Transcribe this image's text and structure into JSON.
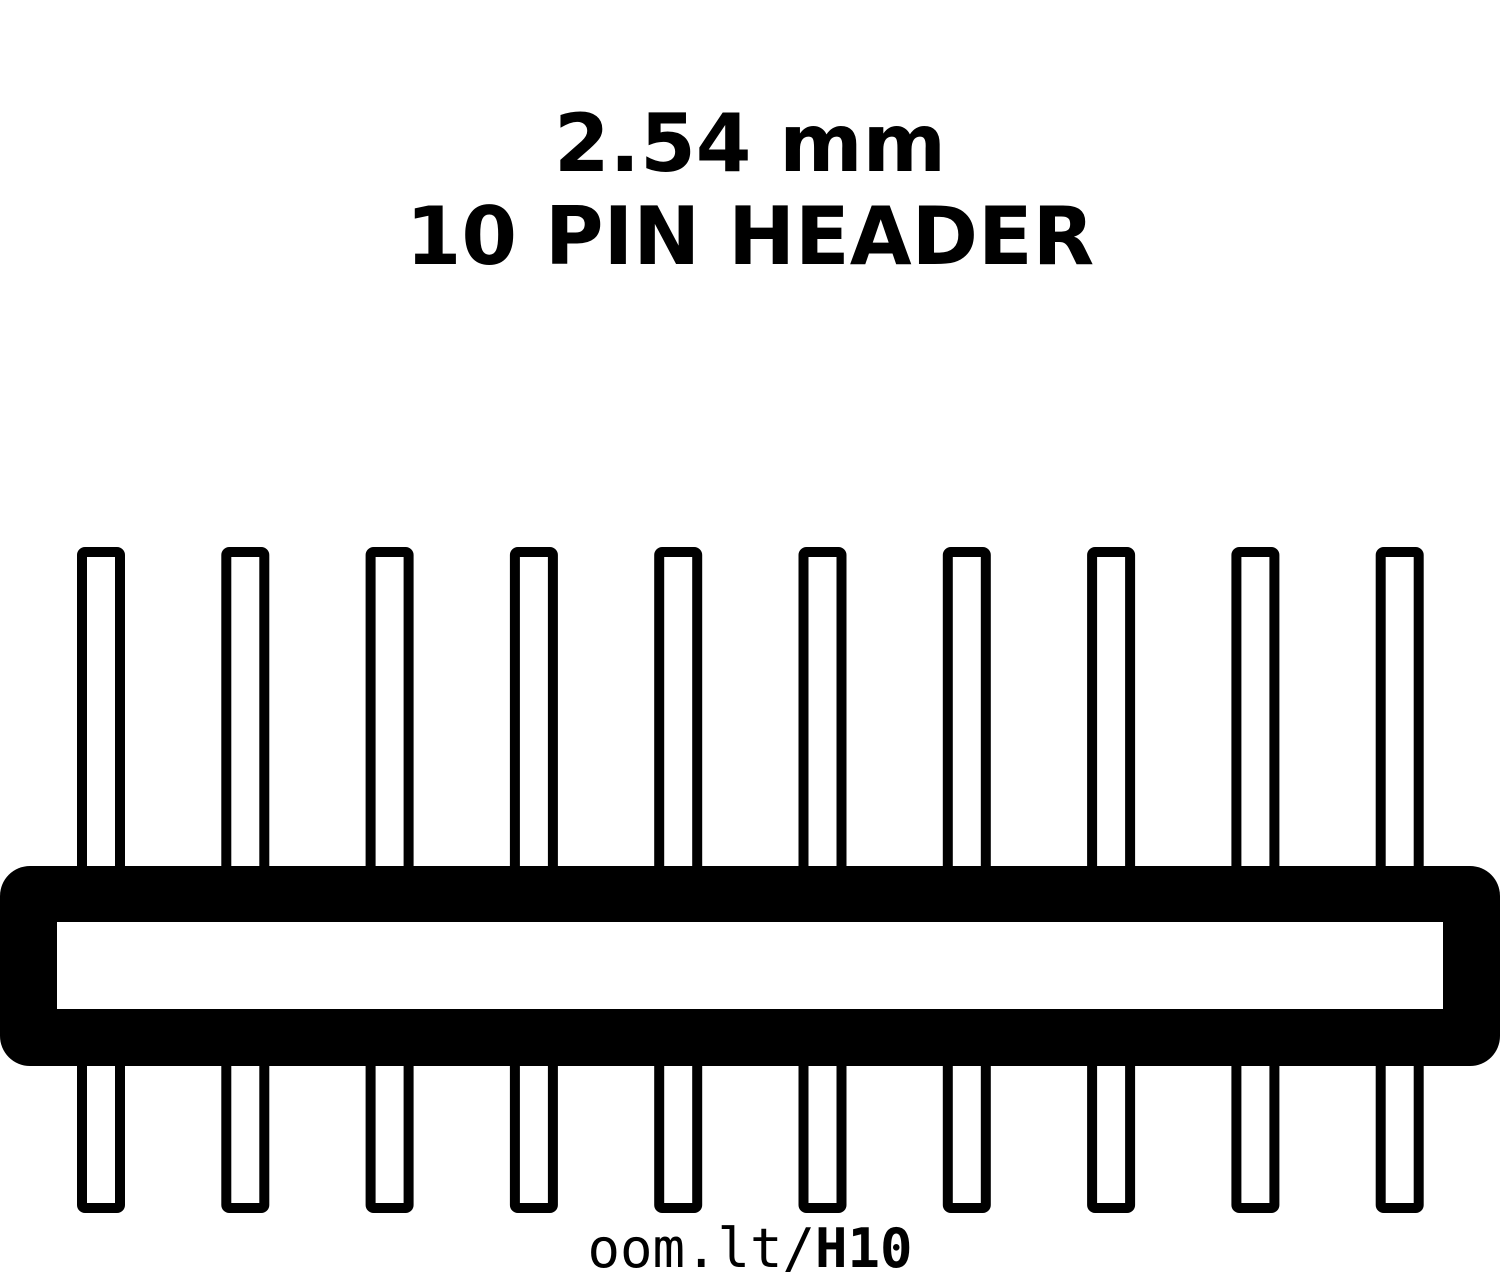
{
  "title": {
    "line1": "2.54 mm",
    "line2": "10 PIN HEADER"
  },
  "footer": {
    "prefix": "oom.lt/",
    "code": "H10"
  },
  "header": {
    "pin_count": 10,
    "pitch": "2.54 mm",
    "color": "#000000",
    "background": "#ffffff"
  }
}
